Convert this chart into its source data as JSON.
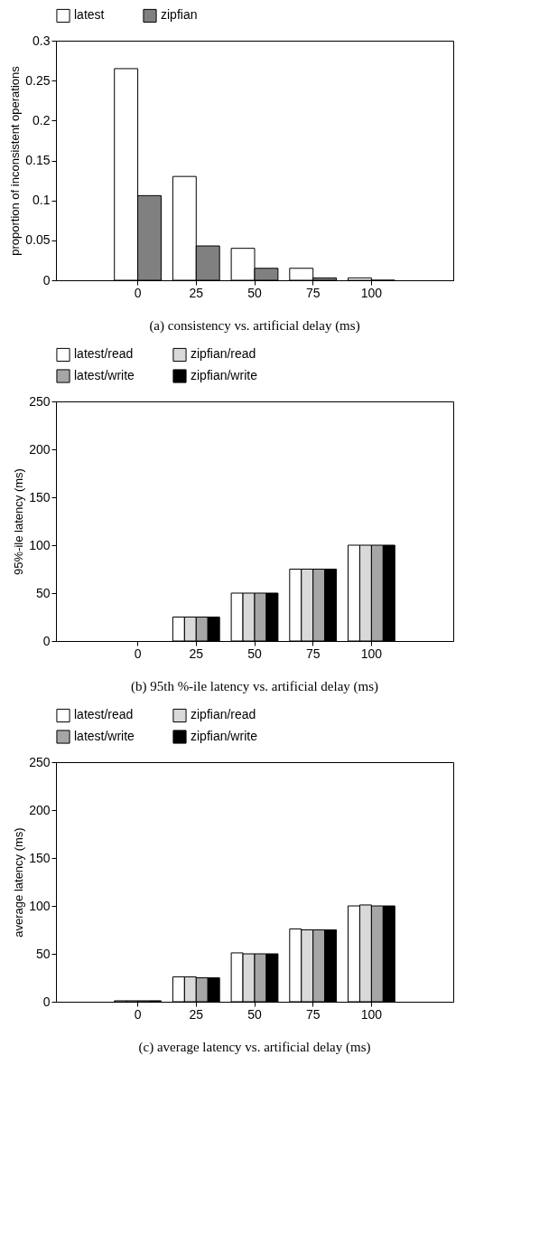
{
  "chart_data": [
    {
      "type": "bar",
      "title": "(a) consistency vs. artificial delay (ms)",
      "ylabel": "proportion of inconsistent operations",
      "categories": [
        "0",
        "25",
        "50",
        "75",
        "100"
      ],
      "series": [
        {
          "name": "latest",
          "color": "#ffffff",
          "values": [
            0.265,
            0.13,
            0.04,
            0.015,
            0.003
          ]
        },
        {
          "name": "zipfian",
          "color": "#808080",
          "values": [
            0.106,
            0.043,
            0.015,
            0.003,
            0
          ]
        }
      ],
      "ylim": [
        0,
        0.3
      ],
      "yticks": [
        0,
        0.05,
        0.1,
        0.15,
        0.2,
        0.25,
        0.3
      ],
      "grid": false,
      "legend": "top"
    },
    {
      "type": "bar",
      "title": "(b) 95th %-ile latency vs. artificial delay (ms)",
      "ylabel": "95%-ile latency (ms)",
      "categories": [
        "0",
        "25",
        "50",
        "75",
        "100"
      ],
      "series": [
        {
          "name": "latest/read",
          "color": "#ffffff",
          "values": [
            null,
            25,
            50,
            75,
            100
          ]
        },
        {
          "name": "zipfian/read",
          "color": "#d9d9d9",
          "values": [
            null,
            25,
            50,
            75,
            100
          ]
        },
        {
          "name": "latest/write",
          "color": "#a6a6a6",
          "values": [
            null,
            25,
            50,
            75,
            100
          ]
        },
        {
          "name": "zipfian/write",
          "color": "#000000",
          "values": [
            null,
            25,
            50,
            75,
            100
          ]
        }
      ],
      "ylim": [
        0,
        250
      ],
      "yticks": [
        0,
        50,
        100,
        150,
        200,
        250
      ],
      "grid": false,
      "legend": "top"
    },
    {
      "type": "bar",
      "title": "(c) average latency vs. artificial delay (ms)",
      "ylabel": "average latency (ms)",
      "categories": [
        "0",
        "25",
        "50",
        "75",
        "100"
      ],
      "series": [
        {
          "name": "latest/read",
          "color": "#ffffff",
          "values": [
            1,
            26,
            51,
            76,
            100
          ]
        },
        {
          "name": "zipfian/read",
          "color": "#d9d9d9",
          "values": [
            1,
            26,
            50,
            75,
            101
          ]
        },
        {
          "name": "latest/write",
          "color": "#a6a6a6",
          "values": [
            1,
            25,
            50,
            75,
            100
          ]
        },
        {
          "name": "zipfian/write",
          "color": "#000000",
          "values": [
            1,
            25,
            50,
            75,
            100
          ]
        }
      ],
      "ylim": [
        0,
        250
      ],
      "yticks": [
        0,
        50,
        100,
        150,
        200,
        250
      ],
      "grid": false,
      "legend": "top"
    }
  ]
}
